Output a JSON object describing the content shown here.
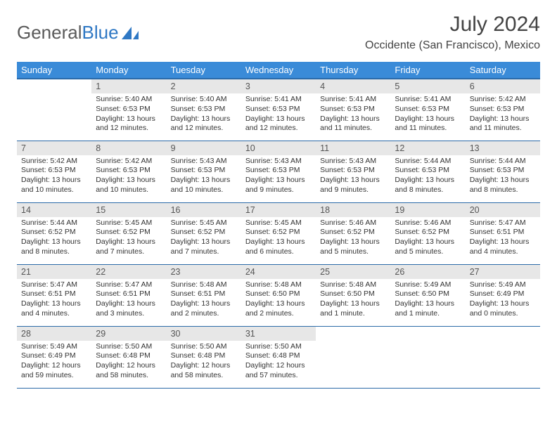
{
  "logo": {
    "text1": "General",
    "text2": "Blue",
    "color1": "#5a5a5a",
    "color2": "#2f78c4",
    "sail_color": "#2f78c4"
  },
  "title": "July 2024",
  "location": "Occidente (San Francisco), Mexico",
  "colors": {
    "header_bg": "#3a8bd8",
    "header_border": "#2b6aa8",
    "daynum_bg": "#e7e7e7",
    "text": "#333333"
  },
  "weekdays": [
    "Sunday",
    "Monday",
    "Tuesday",
    "Wednesday",
    "Thursday",
    "Friday",
    "Saturday"
  ],
  "start_offset": 1,
  "days": [
    {
      "n": "1",
      "sr": "Sunrise: 5:40 AM",
      "ss": "Sunset: 6:53 PM",
      "dl": "Daylight: 13 hours and 12 minutes."
    },
    {
      "n": "2",
      "sr": "Sunrise: 5:40 AM",
      "ss": "Sunset: 6:53 PM",
      "dl": "Daylight: 13 hours and 12 minutes."
    },
    {
      "n": "3",
      "sr": "Sunrise: 5:41 AM",
      "ss": "Sunset: 6:53 PM",
      "dl": "Daylight: 13 hours and 12 minutes."
    },
    {
      "n": "4",
      "sr": "Sunrise: 5:41 AM",
      "ss": "Sunset: 6:53 PM",
      "dl": "Daylight: 13 hours and 11 minutes."
    },
    {
      "n": "5",
      "sr": "Sunrise: 5:41 AM",
      "ss": "Sunset: 6:53 PM",
      "dl": "Daylight: 13 hours and 11 minutes."
    },
    {
      "n": "6",
      "sr": "Sunrise: 5:42 AM",
      "ss": "Sunset: 6:53 PM",
      "dl": "Daylight: 13 hours and 11 minutes."
    },
    {
      "n": "7",
      "sr": "Sunrise: 5:42 AM",
      "ss": "Sunset: 6:53 PM",
      "dl": "Daylight: 13 hours and 10 minutes."
    },
    {
      "n": "8",
      "sr": "Sunrise: 5:42 AM",
      "ss": "Sunset: 6:53 PM",
      "dl": "Daylight: 13 hours and 10 minutes."
    },
    {
      "n": "9",
      "sr": "Sunrise: 5:43 AM",
      "ss": "Sunset: 6:53 PM",
      "dl": "Daylight: 13 hours and 10 minutes."
    },
    {
      "n": "10",
      "sr": "Sunrise: 5:43 AM",
      "ss": "Sunset: 6:53 PM",
      "dl": "Daylight: 13 hours and 9 minutes."
    },
    {
      "n": "11",
      "sr": "Sunrise: 5:43 AM",
      "ss": "Sunset: 6:53 PM",
      "dl": "Daylight: 13 hours and 9 minutes."
    },
    {
      "n": "12",
      "sr": "Sunrise: 5:44 AM",
      "ss": "Sunset: 6:53 PM",
      "dl": "Daylight: 13 hours and 8 minutes."
    },
    {
      "n": "13",
      "sr": "Sunrise: 5:44 AM",
      "ss": "Sunset: 6:53 PM",
      "dl": "Daylight: 13 hours and 8 minutes."
    },
    {
      "n": "14",
      "sr": "Sunrise: 5:44 AM",
      "ss": "Sunset: 6:52 PM",
      "dl": "Daylight: 13 hours and 8 minutes."
    },
    {
      "n": "15",
      "sr": "Sunrise: 5:45 AM",
      "ss": "Sunset: 6:52 PM",
      "dl": "Daylight: 13 hours and 7 minutes."
    },
    {
      "n": "16",
      "sr": "Sunrise: 5:45 AM",
      "ss": "Sunset: 6:52 PM",
      "dl": "Daylight: 13 hours and 7 minutes."
    },
    {
      "n": "17",
      "sr": "Sunrise: 5:45 AM",
      "ss": "Sunset: 6:52 PM",
      "dl": "Daylight: 13 hours and 6 minutes."
    },
    {
      "n": "18",
      "sr": "Sunrise: 5:46 AM",
      "ss": "Sunset: 6:52 PM",
      "dl": "Daylight: 13 hours and 5 minutes."
    },
    {
      "n": "19",
      "sr": "Sunrise: 5:46 AM",
      "ss": "Sunset: 6:52 PM",
      "dl": "Daylight: 13 hours and 5 minutes."
    },
    {
      "n": "20",
      "sr": "Sunrise: 5:47 AM",
      "ss": "Sunset: 6:51 PM",
      "dl": "Daylight: 13 hours and 4 minutes."
    },
    {
      "n": "21",
      "sr": "Sunrise: 5:47 AM",
      "ss": "Sunset: 6:51 PM",
      "dl": "Daylight: 13 hours and 4 minutes."
    },
    {
      "n": "22",
      "sr": "Sunrise: 5:47 AM",
      "ss": "Sunset: 6:51 PM",
      "dl": "Daylight: 13 hours and 3 minutes."
    },
    {
      "n": "23",
      "sr": "Sunrise: 5:48 AM",
      "ss": "Sunset: 6:51 PM",
      "dl": "Daylight: 13 hours and 2 minutes."
    },
    {
      "n": "24",
      "sr": "Sunrise: 5:48 AM",
      "ss": "Sunset: 6:50 PM",
      "dl": "Daylight: 13 hours and 2 minutes."
    },
    {
      "n": "25",
      "sr": "Sunrise: 5:48 AM",
      "ss": "Sunset: 6:50 PM",
      "dl": "Daylight: 13 hours and 1 minute."
    },
    {
      "n": "26",
      "sr": "Sunrise: 5:49 AM",
      "ss": "Sunset: 6:50 PM",
      "dl": "Daylight: 13 hours and 1 minute."
    },
    {
      "n": "27",
      "sr": "Sunrise: 5:49 AM",
      "ss": "Sunset: 6:49 PM",
      "dl": "Daylight: 13 hours and 0 minutes."
    },
    {
      "n": "28",
      "sr": "Sunrise: 5:49 AM",
      "ss": "Sunset: 6:49 PM",
      "dl": "Daylight: 12 hours and 59 minutes."
    },
    {
      "n": "29",
      "sr": "Sunrise: 5:50 AM",
      "ss": "Sunset: 6:48 PM",
      "dl": "Daylight: 12 hours and 58 minutes."
    },
    {
      "n": "30",
      "sr": "Sunrise: 5:50 AM",
      "ss": "Sunset: 6:48 PM",
      "dl": "Daylight: 12 hours and 58 minutes."
    },
    {
      "n": "31",
      "sr": "Sunrise: 5:50 AM",
      "ss": "Sunset: 6:48 PM",
      "dl": "Daylight: 12 hours and 57 minutes."
    }
  ]
}
